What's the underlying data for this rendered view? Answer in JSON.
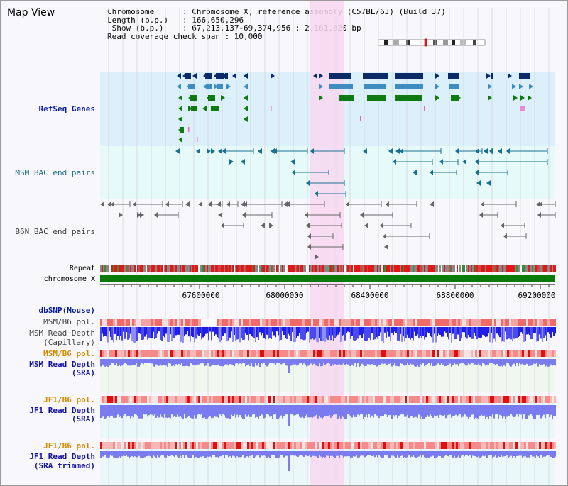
{
  "view": {
    "title": "Map View"
  },
  "info": {
    "chromosome_key": "Chromosome      ",
    "chromosome_val": ": Chromosome X, reference assembly (C57BL/6J) (Build 37)",
    "length_key": "Length (b.p.)   ",
    "length_val": ": 166,650,296",
    "show_key": " Show (b.p.)    ",
    "show_val": ": 67,213,137-69,374,956 : 2,161,820 bp",
    "coverage_text": "Read coverage check span : 10,000"
  },
  "tracks": {
    "refseq_genes": "RefSeq Genes",
    "msm_bac": "MSM BAC end pairs",
    "b6n_bac": "B6N BAC end pairs",
    "repeat": "Repeat",
    "chromosome": "chromosome X",
    "dbsnp": "dbSNP(Mouse)",
    "msm_b6_pol_1": "MSM/B6 pol.",
    "msm_read_depth_cap_1": "MSM Read Depth",
    "msm_read_depth_cap_2": "(Capillary)",
    "msm_b6_pol_2": "MSM/B6 pol.",
    "msm_read_depth_sra_1": "MSM Read Depth",
    "msm_read_depth_sra_2": "(SRA)",
    "jf1_b6_pol_1": "JF1/B6 pol.",
    "jf1_read_depth_sra_1": "JF1 Read Depth",
    "jf1_read_depth_sra_2": "(SRA)",
    "jf1_b6_pol_2": "JF1/B6 pol.",
    "jf1_read_depth_trim_1": "JF1 Read Depth",
    "jf1_read_depth_trim_2": "(SRA trimmed)"
  },
  "axis": {
    "ticks": [
      "67600000",
      "68000000",
      "68400000",
      "68800000",
      "69200000"
    ]
  },
  "colors": {
    "highlight": "#f8d8f0",
    "refseq_bg": "#dcf0fc",
    "bac_bg": "#e6fafa",
    "gene_dark": "#0b2a66",
    "gene_mid": "#3e8cc0",
    "gene_green": "#0f7a12",
    "bac_line": "#1a7090",
    "b6n_line": "#666666",
    "chrom_green": "#0a7a0a",
    "depth_blue": "#2222ee",
    "depth_light": "#7b7bf0"
  }
}
